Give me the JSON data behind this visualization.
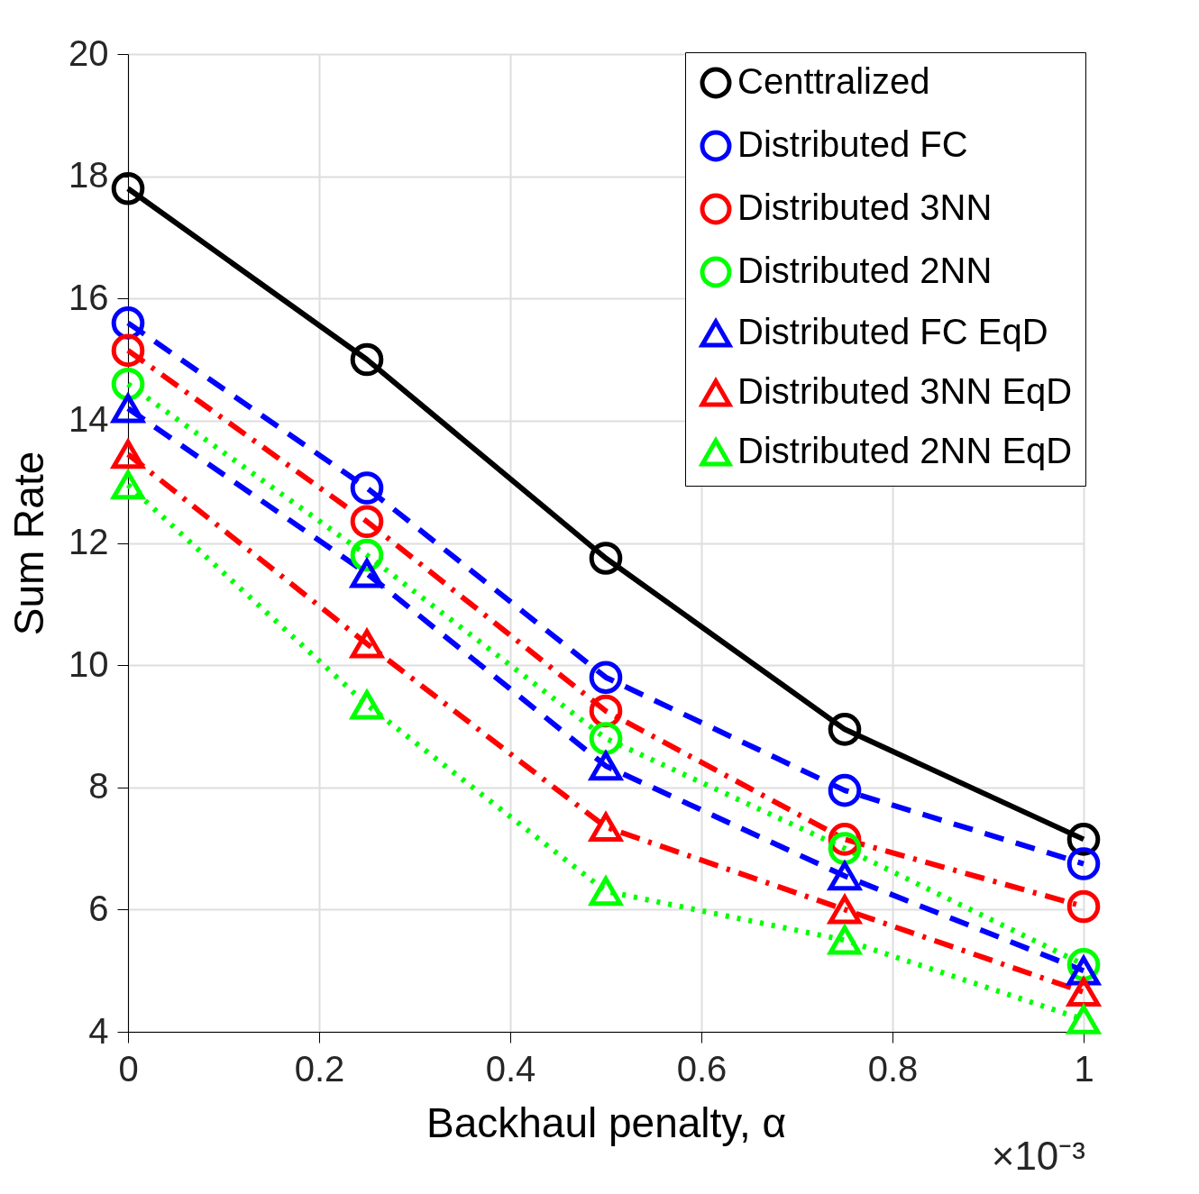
{
  "chart_data": {
    "type": "line",
    "xlabel": "Backhaul penalty, α",
    "ylabel": "Sum Rate",
    "x": [
      0,
      0.25,
      0.5,
      0.75,
      1
    ],
    "xlim": [
      0,
      1
    ],
    "xticks": [
      0,
      0.2,
      0.4,
      0.6,
      0.8,
      1
    ],
    "ylim": [
      4,
      20
    ],
    "yticks": [
      4,
      6,
      8,
      10,
      12,
      14,
      16,
      18,
      20
    ],
    "grid": true,
    "legend": "top right",
    "annotations": [
      "×10⁻³"
    ],
    "series": [
      {
        "name": "Centtralized",
        "color": "#000000",
        "marker": "circle",
        "line_style": "solid",
        "values": [
          17.8,
          15.0,
          11.75,
          8.95,
          7.15
        ]
      },
      {
        "name": "Distributed FC",
        "color": "#0000ff",
        "marker": "circle",
        "line_style": "dashed",
        "values": [
          15.6,
          12.9,
          9.8,
          7.95,
          6.75
        ]
      },
      {
        "name": "Distributed 3NN",
        "color": "#ff0000",
        "marker": "circle",
        "line_style": "dashdot",
        "values": [
          15.15,
          12.35,
          9.25,
          7.15,
          6.05
        ]
      },
      {
        "name": "Distributed 2NN",
        "color": "#00ff00",
        "marker": "circle",
        "line_style": "dotted",
        "values": [
          14.6,
          11.8,
          8.8,
          7.0,
          5.1
        ]
      },
      {
        "name": "Distributed FC EqD",
        "color": "#0000ff",
        "marker": "triangle",
        "line_style": "dashed",
        "values": [
          14.2,
          11.5,
          8.35,
          6.55,
          5.0
        ]
      },
      {
        "name": "Distributed 3NN EqD",
        "color": "#ff0000",
        "marker": "triangle",
        "line_style": "dashdot",
        "values": [
          13.45,
          10.35,
          7.35,
          6.0,
          4.65
        ]
      },
      {
        "name": "Distributed 2NN EqD",
        "color": "#00ff00",
        "marker": "triangle",
        "line_style": "dotted",
        "values": [
          12.95,
          9.35,
          6.3,
          5.5,
          4.2
        ]
      }
    ]
  }
}
